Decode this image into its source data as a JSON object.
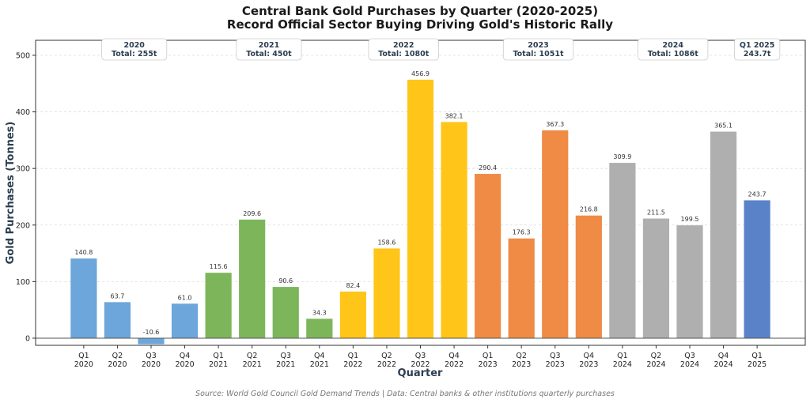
{
  "chart_data": {
    "type": "bar",
    "title": "Central Bank Gold Purchases by Quarter (2020-2025)",
    "subtitle": "Record Official Sector Buying Driving Gold's Historic Rally",
    "xlabel": "Quarter",
    "ylabel": "Gold Purchases (Tonnes)",
    "ylim": [
      -12.6,
      526.5
    ],
    "yticks": [
      0,
      100,
      200,
      300,
      400,
      500
    ],
    "grid": "horizontal dashed",
    "categories": [
      "Q1\n2020",
      "Q2\n2020",
      "Q3\n2020",
      "Q4\n2020",
      "Q1\n2021",
      "Q2\n2021",
      "Q3\n2021",
      "Q4\n2021",
      "Q1\n2022",
      "Q2\n2022",
      "Q3\n2022",
      "Q4\n2022",
      "Q1\n2023",
      "Q2\n2023",
      "Q3\n2023",
      "Q4\n2023",
      "Q1\n2024",
      "Q2\n2024",
      "Q3\n2024",
      "Q4\n2024",
      "Q1\n2025"
    ],
    "values": [
      140.8,
      63.7,
      -10.6,
      61.0,
      115.6,
      209.6,
      90.6,
      34.3,
      82.4,
      158.6,
      456.9,
      382.1,
      290.4,
      176.3,
      367.3,
      216.8,
      309.9,
      211.5,
      199.5,
      365.1,
      243.7
    ],
    "value_labels": [
      "140.8",
      "63.7",
      "-10.6",
      "61.0",
      "115.6",
      "209.6",
      "90.6",
      "34.3",
      "82.4",
      "158.6",
      "456.9",
      "382.1",
      "290.4",
      "176.3",
      "367.3",
      "216.8",
      "309.9",
      "211.5",
      "199.5",
      "365.1",
      "243.7"
    ],
    "year_colors": {
      "2020": "#6ca6da",
      "2021": "#7db65a",
      "2022": "#ffc619",
      "2023": "#ef8b45",
      "2024": "#afafaf",
      "2025": "#5a82c9"
    },
    "annotations": [
      {
        "line1": "2020",
        "line2": "Total: 255t",
        "quarters": [
          0,
          3
        ]
      },
      {
        "line1": "2021",
        "line2": "Total: 450t",
        "quarters": [
          4,
          7
        ]
      },
      {
        "line1": "2022",
        "line2": "Total: 1080t",
        "quarters": [
          8,
          11
        ]
      },
      {
        "line1": "2023",
        "line2": "Total: 1051t",
        "quarters": [
          12,
          15
        ]
      },
      {
        "line1": "2024",
        "line2": "Total: 1086t",
        "quarters": [
          16,
          19
        ]
      },
      {
        "line1": "Q1 2025",
        "line2": "243.7t",
        "quarters": [
          20,
          20
        ]
      }
    ],
    "source": "Source: World Gold Council Gold Demand Trends | Data: Central banks & other institutions quarterly purchases"
  }
}
